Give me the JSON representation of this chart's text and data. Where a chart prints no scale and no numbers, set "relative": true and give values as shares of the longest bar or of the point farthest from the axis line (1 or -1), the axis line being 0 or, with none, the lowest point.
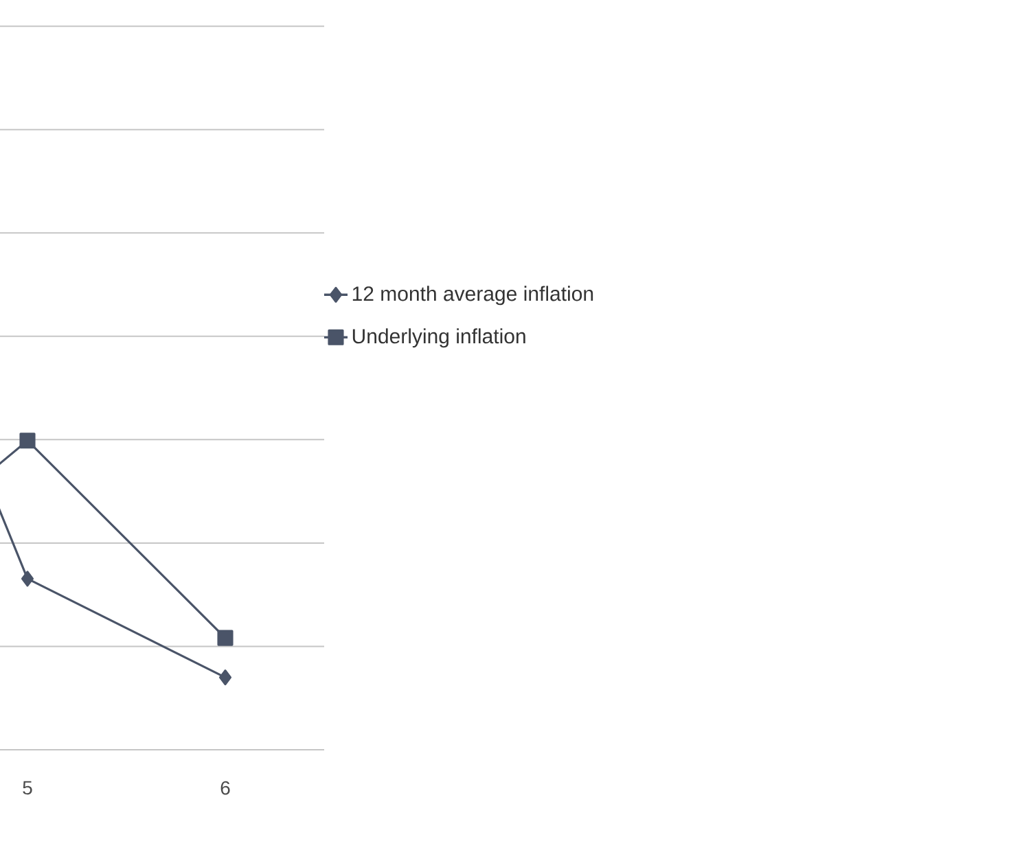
{
  "chart_data": {
    "type": "line",
    "relative": true,
    "categories": [
      null,
      "5",
      "6"
    ],
    "series": [
      {
        "name": "12 month average inflation",
        "color": "#4a5468",
        "marker": "diamond",
        "values": [
          1,
          0.26,
          0.11
        ]
      },
      {
        "name": "Underlying inflation",
        "color": "#4a5468",
        "marker": "square",
        "values": [
          0.22,
          0.47,
          0.17
        ]
      }
    ],
    "grid": "y",
    "legend": "right"
  }
}
